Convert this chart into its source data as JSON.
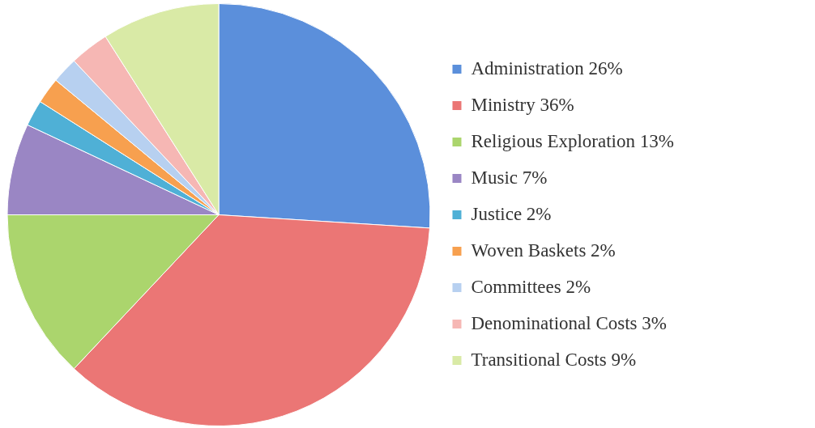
{
  "chart_data": {
    "type": "pie",
    "categories": [
      "Administration 26%",
      "Ministry 36%",
      "Religious Exploration 13%",
      "Music 7%",
      "Justice 2%",
      "Woven Baskets 2%",
      "Committees 2%",
      "Denominational Costs 3%",
      "Transitional Costs 9%"
    ],
    "values": [
      26,
      36,
      13,
      7,
      2,
      2,
      2,
      3,
      9
    ],
    "colors": [
      "#5b8fdb",
      "#eb7675",
      "#abd56d",
      "#9a86c4",
      "#4fb0d6",
      "#f7a04f",
      "#b7d0f0",
      "#f6b7b4",
      "#d9eaa6"
    ],
    "legend": "right"
  }
}
